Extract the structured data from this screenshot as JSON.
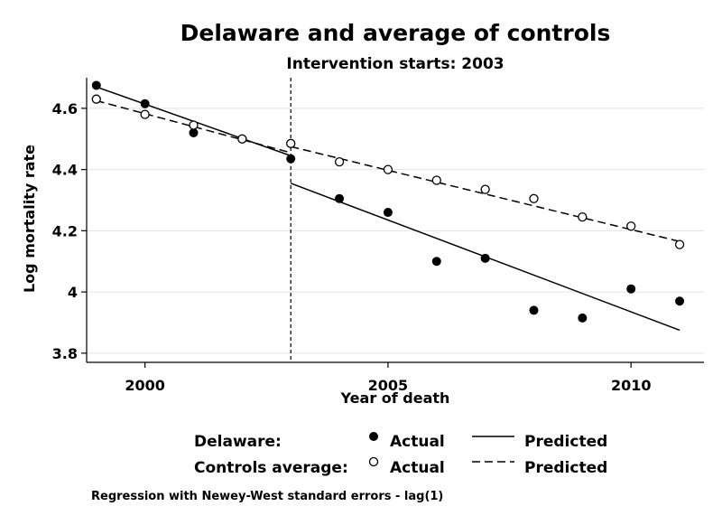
{
  "chart_data": {
    "type": "scatter",
    "title": "Delaware and average of controls",
    "subtitle": "Intervention starts: 2003",
    "xlabel": "Year of death",
    "ylabel": "Log mortality rate",
    "xlim": [
      1998.8,
      2011.5
    ],
    "ylim": [
      3.77,
      4.7
    ],
    "xticks": [
      2000,
      2005,
      2010
    ],
    "yticks": [
      3.8,
      4.0,
      4.2,
      4.4,
      4.6
    ],
    "ytick_labels": [
      "3.8",
      "4",
      "4.2",
      "4.4",
      "4.6"
    ],
    "intervention_year": 2003,
    "x": [
      1999,
      2000,
      2001,
      2002,
      2003,
      2004,
      2005,
      2006,
      2007,
      2008,
      2009,
      2010,
      2011
    ],
    "series": [
      {
        "name": "Delaware",
        "marker": "filled",
        "values": [
          4.675,
          4.615,
          4.52,
          4.5,
          4.435,
          4.305,
          4.26,
          4.1,
          4.11,
          3.94,
          3.915,
          4.01,
          3.97
        ],
        "predicted_segments": [
          {
            "x": [
              1999,
              2003
            ],
            "y": [
              4.67,
              4.445
            ]
          },
          {
            "x": [
              2003,
              2011
            ],
            "y": [
              4.355,
              3.875
            ]
          }
        ]
      },
      {
        "name": "Controls average",
        "marker": "hollow",
        "values": [
          4.63,
          4.58,
          4.545,
          4.5,
          4.485,
          4.425,
          4.4,
          4.365,
          4.335,
          4.305,
          4.245,
          4.215,
          4.155
        ],
        "predicted_segments": [
          {
            "x": [
              1999,
              2003
            ],
            "y": [
              4.625,
              4.455
            ]
          },
          {
            "x": [
              2003,
              2011
            ],
            "y": [
              4.475,
              4.165
            ]
          }
        ]
      }
    ],
    "legend": {
      "position": "bottom",
      "rows": [
        {
          "label": "Delaware:",
          "actual": "Actual",
          "predicted": "Predicted"
        },
        {
          "label": "Controls average:",
          "actual": "Actual",
          "predicted": "Predicted"
        }
      ]
    },
    "note": "Regression with Newey-West standard errors - lag(1)"
  }
}
